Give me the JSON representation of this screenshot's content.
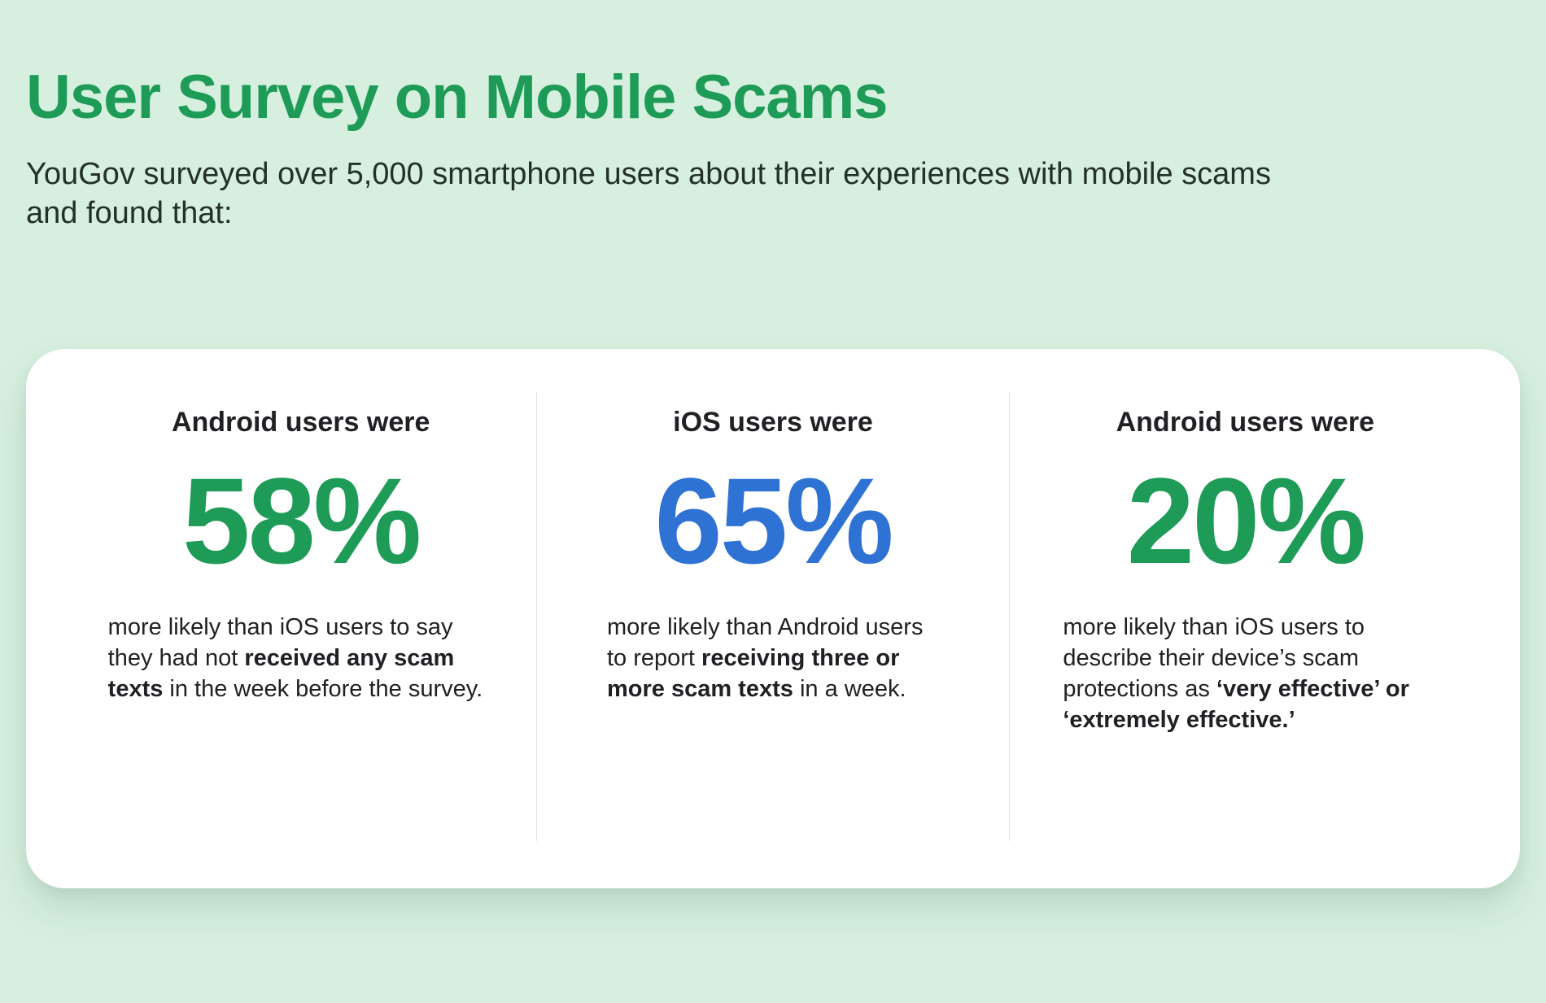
{
  "page": {
    "title": "User Survey on Mobile Scams",
    "subtitle": "YouGov surveyed over 5,000 smartphone users about their experiences with mobile scams and found that:"
  },
  "colors": {
    "background": "#d7efdf",
    "title_green": "#1d9b57",
    "stat_green": "#1d9b57",
    "stat_blue": "#2e72d4",
    "body_text": "#202124",
    "card_background": "#ffffff",
    "divider": "#e3e3e3"
  },
  "stats": [
    {
      "header": "Android users were",
      "value": "58%",
      "value_color": "#1d9b57",
      "desc": {
        "pre": "more likely than iOS users to say they had not ",
        "bold": "received any scam texts",
        "post": " in the week before the survey."
      }
    },
    {
      "header": "iOS users were",
      "value": "65%",
      "value_color": "#2e72d4",
      "desc": {
        "pre": "more likely than Android users to report ",
        "bold": "receiving three or more scam texts",
        "post": " in a week."
      }
    },
    {
      "header": "Android users were",
      "value": "20%",
      "value_color": "#1d9b57",
      "desc": {
        "pre": "more likely than iOS users to describe their device’s scam protections as ",
        "bold": "‘very effective’ or ‘extremely effective.’",
        "post": ""
      }
    }
  ]
}
